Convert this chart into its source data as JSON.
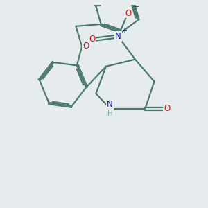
{
  "bg_color": "#e6ecee",
  "bond_color": "#4a7a6a",
  "bond_width": 1.6,
  "dbo": 0.07,
  "atom_colors": {
    "N": "#1a1acc",
    "O": "#cc1a1a",
    "H": "#7ab0a8",
    "C": "#4a7a6a"
  },
  "fs": 8.5
}
